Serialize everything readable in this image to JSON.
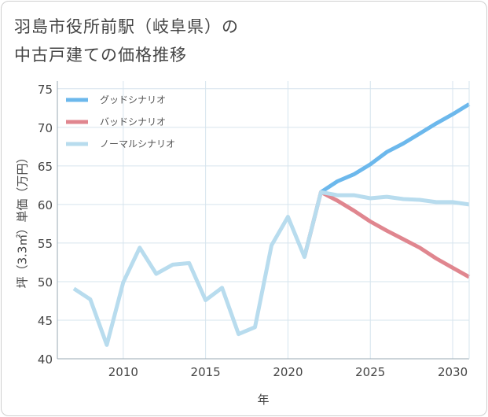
{
  "chart_data": {
    "type": "line",
    "title_line1": "羽島市役所前駅（岐阜県）の",
    "title_line2": "中古戸建ての価格推移",
    "xlabel": "年",
    "ylabel": "坪（3.3㎡）単価（万円）",
    "xlim": [
      2006,
      2031
    ],
    "ylim": [
      40,
      76
    ],
    "x_ticks": [
      2010,
      2015,
      2020,
      2025,
      2030
    ],
    "y_ticks": [
      40,
      45,
      50,
      55,
      60,
      65,
      70,
      75
    ],
    "grid": true,
    "legend_position": "top-left",
    "series": [
      {
        "name": "グッドシナリオ",
        "color": "#6cb8ec",
        "x": [
          2022,
          2023,
          2024,
          2025,
          2026,
          2027,
          2028,
          2029,
          2030,
          2031
        ],
        "values": [
          61.6,
          63.0,
          63.9,
          65.2,
          66.8,
          67.9,
          69.2,
          70.5,
          71.7,
          73.0
        ]
      },
      {
        "name": "バッドシナリオ",
        "color": "#e0868f",
        "x": [
          2021,
          2022,
          2023,
          2024,
          2025,
          2026,
          2027,
          2028,
          2029,
          2030,
          2031
        ],
        "values": [
          53.2,
          61.6,
          60.5,
          59.2,
          57.8,
          56.6,
          55.5,
          54.4,
          53.0,
          51.8,
          50.6
        ]
      },
      {
        "name": "ノーマルシナリオ",
        "color": "#b8dcee",
        "x": [
          2007,
          2008,
          2009,
          2010,
          2011,
          2012,
          2013,
          2014,
          2015,
          2016,
          2017,
          2018,
          2019,
          2020,
          2021,
          2022,
          2023,
          2024,
          2025,
          2026,
          2027,
          2028,
          2029,
          2030,
          2031
        ],
        "values": [
          49.1,
          47.7,
          41.8,
          49.9,
          54.4,
          51.0,
          52.2,
          52.4,
          47.6,
          49.2,
          43.2,
          44.1,
          54.7,
          58.4,
          53.2,
          61.6,
          61.2,
          61.2,
          60.8,
          61.0,
          60.7,
          60.6,
          60.3,
          60.3,
          60.0
        ]
      }
    ]
  }
}
